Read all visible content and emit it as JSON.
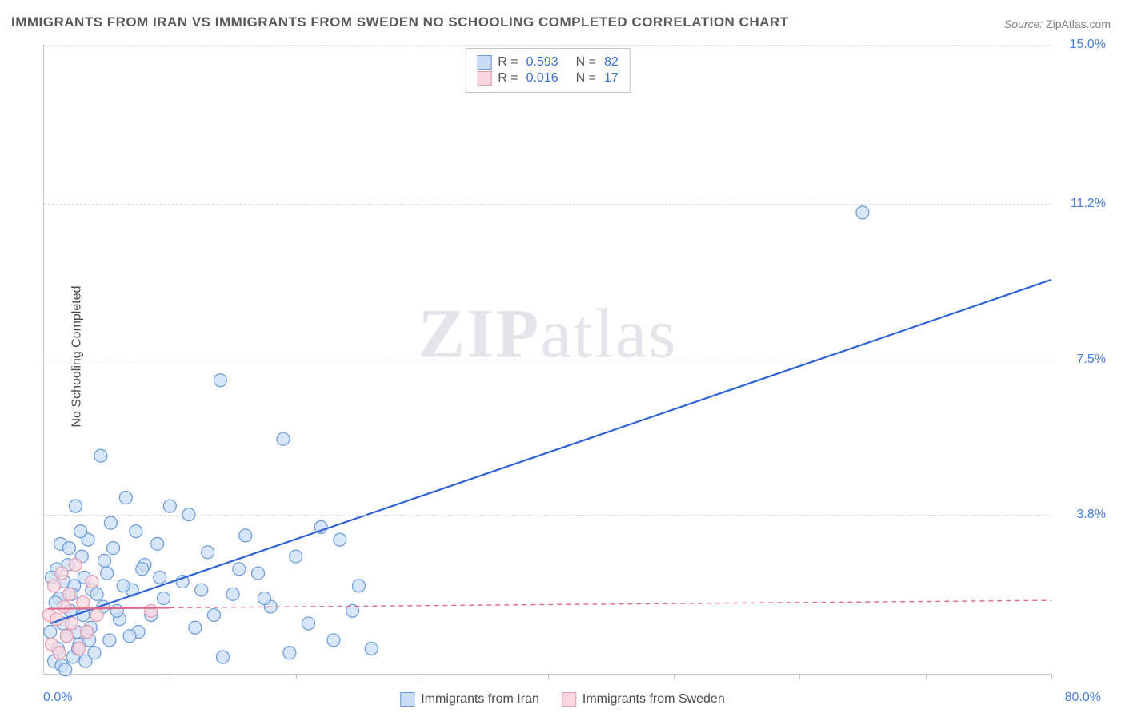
{
  "title": "IMMIGRANTS FROM IRAN VS IMMIGRANTS FROM SWEDEN NO SCHOOLING COMPLETED CORRELATION CHART",
  "source_label": "Source:",
  "source_value": "ZipAtlas.com",
  "ylabel": "No Schooling Completed",
  "watermark_a": "ZIP",
  "watermark_b": "atlas",
  "chart": {
    "type": "scatter-correlation",
    "xlim": [
      0,
      80
    ],
    "ylim": [
      0,
      15
    ],
    "xlim_label_left": "0.0%",
    "xlim_label_right": "80.0%",
    "y_tick_positions": [
      3.8,
      7.5,
      11.2,
      15.0
    ],
    "y_tick_labels": [
      "3.8%",
      "7.5%",
      "11.2%",
      "15.0%"
    ],
    "x_tick_positions": [
      10,
      20,
      30,
      40,
      50,
      60,
      70,
      80
    ],
    "background_color": "#ffffff",
    "grid_color": "#dcdcdc",
    "axis_color": "#c8c8c8",
    "marker_radius": 8,
    "marker_stroke_width": 1.2,
    "trendline_width": 2.2,
    "series": [
      {
        "name": "Immigrants from Iran",
        "fill": "#c9ddf5",
        "stroke": "#6a99d9",
        "trend_color": "#2f63d6",
        "trend_dash": "none",
        "r_label": "R =",
        "r_value": "0.593",
        "n_label": "N =",
        "n_value": "82",
        "trend": {
          "x1": 0.5,
          "y1": 1.2,
          "x2": 80,
          "y2": 9.4
        },
        "points": [
          [
            0.5,
            1.0
          ],
          [
            0.8,
            0.3
          ],
          [
            1.0,
            2.5
          ],
          [
            1.1,
            0.6
          ],
          [
            1.2,
            1.8
          ],
          [
            1.3,
            3.1
          ],
          [
            1.4,
            0.2
          ],
          [
            1.5,
            1.2
          ],
          [
            1.6,
            2.2
          ],
          [
            1.8,
            0.9
          ],
          [
            2.0,
            3.0
          ],
          [
            2.1,
            1.5
          ],
          [
            2.3,
            0.4
          ],
          [
            2.4,
            2.1
          ],
          [
            2.5,
            4.0
          ],
          [
            2.6,
            1.0
          ],
          [
            2.8,
            0.7
          ],
          [
            3.0,
            2.8
          ],
          [
            3.1,
            1.4
          ],
          [
            3.3,
            0.3
          ],
          [
            3.5,
            3.2
          ],
          [
            3.7,
            1.1
          ],
          [
            3.8,
            2.0
          ],
          [
            4.0,
            0.5
          ],
          [
            4.5,
            5.2
          ],
          [
            4.7,
            1.6
          ],
          [
            5.0,
            2.4
          ],
          [
            5.2,
            0.8
          ],
          [
            5.5,
            3.0
          ],
          [
            6.0,
            1.3
          ],
          [
            6.5,
            4.2
          ],
          [
            7.0,
            2.0
          ],
          [
            7.5,
            1.0
          ],
          [
            8.0,
            2.6
          ],
          [
            9.0,
            3.1
          ],
          [
            9.5,
            1.8
          ],
          [
            10.0,
            4.0
          ],
          [
            11.0,
            2.2
          ],
          [
            12.0,
            1.1
          ],
          [
            13.0,
            2.9
          ],
          [
            14.0,
            7.0
          ],
          [
            15.0,
            1.9
          ],
          [
            16.0,
            3.3
          ],
          [
            17.0,
            2.4
          ],
          [
            18.0,
            1.6
          ],
          [
            19.0,
            5.6
          ],
          [
            20.0,
            2.8
          ],
          [
            21.0,
            1.2
          ],
          [
            22.0,
            3.5
          ],
          [
            23.0,
            0.8
          ],
          [
            25.0,
            2.1
          ],
          [
            26.0,
            0.6
          ],
          [
            0.6,
            2.3
          ],
          [
            0.9,
            1.7
          ],
          [
            1.7,
            0.1
          ],
          [
            1.9,
            2.6
          ],
          [
            2.2,
            1.9
          ],
          [
            2.7,
            0.6
          ],
          [
            2.9,
            3.4
          ],
          [
            3.2,
            2.3
          ],
          [
            3.4,
            1.0
          ],
          [
            3.6,
            0.8
          ],
          [
            4.2,
            1.9
          ],
          [
            4.8,
            2.7
          ],
          [
            5.3,
            3.6
          ],
          [
            5.8,
            1.5
          ],
          [
            6.3,
            2.1
          ],
          [
            6.8,
            0.9
          ],
          [
            7.3,
            3.4
          ],
          [
            7.8,
            2.5
          ],
          [
            8.5,
            1.4
          ],
          [
            9.2,
            2.3
          ],
          [
            11.5,
            3.8
          ],
          [
            12.5,
            2.0
          ],
          [
            13.5,
            1.4
          ],
          [
            15.5,
            2.5
          ],
          [
            17.5,
            1.8
          ],
          [
            19.5,
            0.5
          ],
          [
            23.5,
            3.2
          ],
          [
            24.5,
            1.5
          ],
          [
            65.0,
            11.0
          ],
          [
            14.2,
            0.4
          ]
        ]
      },
      {
        "name": "Immigrants from Sweden",
        "fill": "#f8d7df",
        "stroke": "#e29aad",
        "trend_color": "#e06a88",
        "trend_dash": "6,5",
        "r_label": "R =",
        "r_value": "0.016",
        "n_label": "N =",
        "n_value": "17",
        "trend_solid_to": 10,
        "trend": {
          "x1": 0.3,
          "y1": 1.55,
          "x2": 80,
          "y2": 1.75
        },
        "points": [
          [
            0.4,
            1.4
          ],
          [
            0.6,
            0.7
          ],
          [
            0.8,
            2.1
          ],
          [
            1.0,
            1.3
          ],
          [
            1.2,
            0.5
          ],
          [
            1.4,
            2.4
          ],
          [
            1.6,
            1.6
          ],
          [
            1.8,
            0.9
          ],
          [
            2.0,
            1.9
          ],
          [
            2.2,
            1.2
          ],
          [
            2.5,
            2.6
          ],
          [
            2.8,
            0.6
          ],
          [
            3.1,
            1.7
          ],
          [
            3.4,
            1.0
          ],
          [
            3.8,
            2.2
          ],
          [
            4.2,
            1.4
          ],
          [
            8.5,
            1.5
          ]
        ]
      }
    ]
  },
  "bottom_legend": {
    "a": "Immigrants from Iran",
    "b": "Immigrants from Sweden"
  }
}
